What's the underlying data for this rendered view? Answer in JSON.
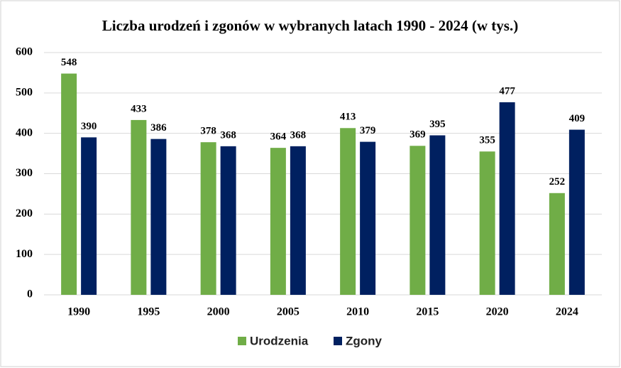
{
  "chart_data": {
    "type": "bar",
    "title": "Liczba urodzeń i zgonów w wybranych latach 1990 - 2024 (w tys.)",
    "categories": [
      "1990",
      "1995",
      "2000",
      "2005",
      "2010",
      "2015",
      "2020",
      "2024"
    ],
    "series": [
      {
        "name": "Urodzenia",
        "color": "#70ad47",
        "values": [
          548,
          433,
          378,
          364,
          413,
          369,
          355,
          252
        ]
      },
      {
        "name": "Zgony",
        "color": "#002060",
        "values": [
          390,
          386,
          368,
          368,
          379,
          395,
          477,
          409
        ]
      }
    ],
    "ylim": [
      0,
      600
    ],
    "yticks": [
      0,
      100,
      200,
      300,
      400,
      500,
      600
    ],
    "grid": true,
    "legend": "bottom"
  }
}
